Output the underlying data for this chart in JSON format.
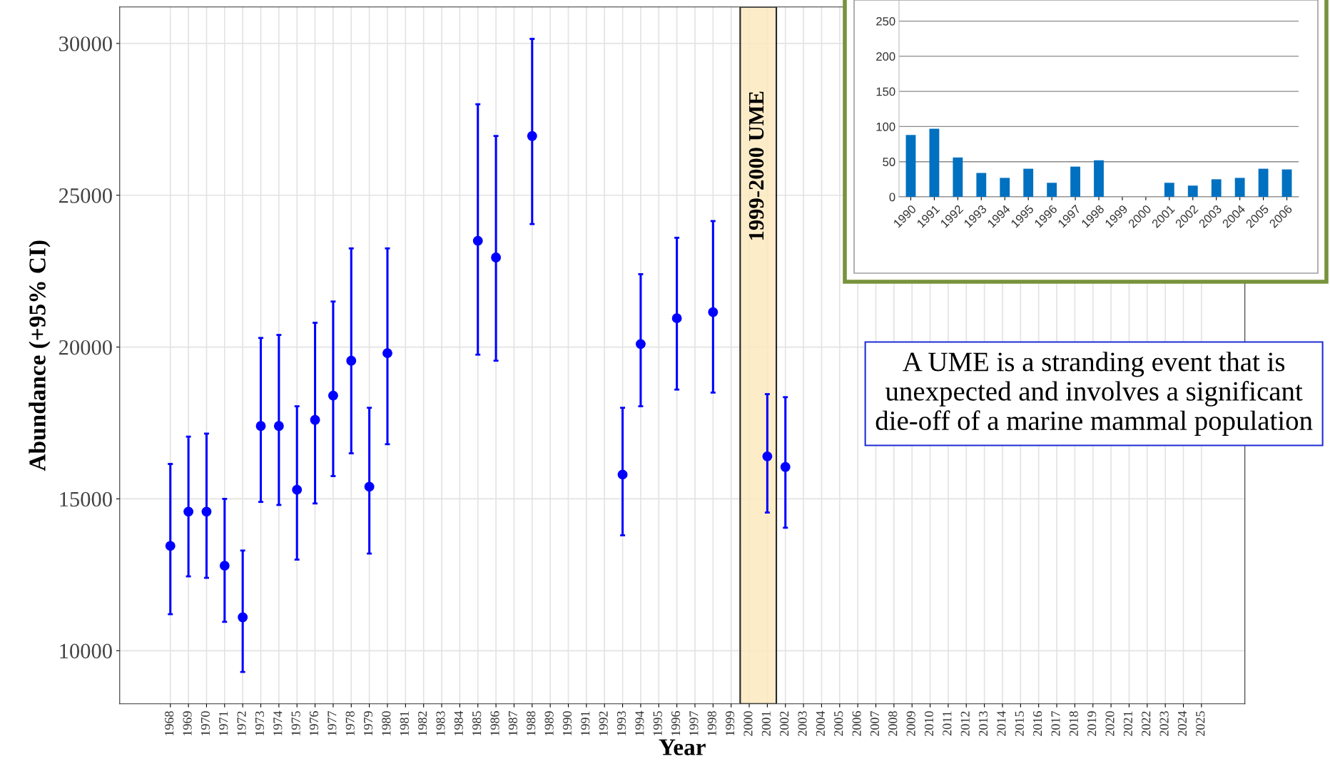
{
  "chart_data": [
    {
      "type": "scatter",
      "xlabel": "Year",
      "ylabel": "Abundance (+95% CI)",
      "x": [
        1968,
        1969,
        1970,
        1971,
        1972,
        1973,
        1974,
        1975,
        1976,
        1977,
        1978,
        1979,
        1980,
        1985,
        1986,
        1988,
        1993,
        1994,
        1996,
        1998,
        2001,
        2002
      ],
      "series": [
        {
          "color": "#0000ff",
          "values": [
            13450,
            14580,
            14580,
            12800,
            11100,
            17400,
            17400,
            15300,
            17600,
            18400,
            19550,
            15400,
            19800,
            23500,
            22950,
            26950,
            15800,
            20100,
            20950,
            21150,
            16400,
            16050
          ],
          "errors": [
            [
              11200,
              16150
            ],
            [
              12450,
              17050
            ],
            [
              12400,
              17150
            ],
            [
              10950,
              15000
            ],
            [
              9300,
              13300
            ],
            [
              14900,
              20300
            ],
            [
              14800,
              20400
            ],
            [
              13000,
              18050
            ],
            [
              14850,
              20800
            ],
            [
              15750,
              21500
            ],
            [
              16500,
              23250
            ],
            [
              13200,
              18000
            ],
            [
              16800,
              23250
            ],
            [
              19750,
              28000
            ],
            [
              19550,
              26950
            ],
            [
              24050,
              30150
            ],
            [
              13800,
              18000
            ],
            [
              18050,
              22400
            ],
            [
              18600,
              23600
            ],
            [
              18500,
              24150
            ],
            [
              14550,
              18450
            ],
            [
              14050,
              18350
            ]
          ]
        }
      ],
      "xlim": [
        1965.2,
        2027.4
      ],
      "xticks": [
        1968,
        1969,
        1970,
        1971,
        1972,
        1973,
        1974,
        1975,
        1976,
        1977,
        1978,
        1979,
        1980,
        1981,
        1982,
        1983,
        1984,
        1985,
        1986,
        1987,
        1988,
        1989,
        1990,
        1991,
        1992,
        1993,
        1994,
        1995,
        1996,
        1997,
        1998,
        1999,
        2000,
        2001,
        2002,
        2003,
        2004,
        2005,
        2006,
        2007,
        2008,
        2009,
        2010,
        2011,
        2012,
        2013,
        2014,
        2015,
        2016,
        2017,
        2018,
        2019,
        2020,
        2021,
        2022,
        2023,
        2024,
        2025
      ],
      "ylim": [
        8250,
        31200
      ],
      "yticks": [
        10000,
        15000,
        20000,
        25000,
        30000
      ],
      "grid": true,
      "marker": "circle",
      "bands": [
        {
          "axis": "x",
          "from": 1999.5,
          "to": 2001.5,
          "label": "1999-2000 UME",
          "color": "#fde9bf"
        }
      ],
      "annotations": [
        "A UME is a stranding event that is unexpected and involves a significant die-off of a marine mammal population"
      ]
    },
    {
      "type": "bar",
      "categories": [
        "1990",
        "1991",
        "1992",
        "1993",
        "1994",
        "1995",
        "1996",
        "1997",
        "1998",
        "1999",
        "2000",
        "2001",
        "2002",
        "2003",
        "2004",
        "2005",
        "2006"
      ],
      "values": [
        88,
        97,
        56,
        34,
        27,
        40,
        20,
        43,
        52,
        null,
        null,
        20,
        16,
        25,
        27,
        40,
        39
      ],
      "color": "#0070c0",
      "ylim": [
        0,
        280
      ],
      "yticks": [
        0,
        50,
        100,
        150,
        200,
        250
      ],
      "grid": "y"
    }
  ]
}
